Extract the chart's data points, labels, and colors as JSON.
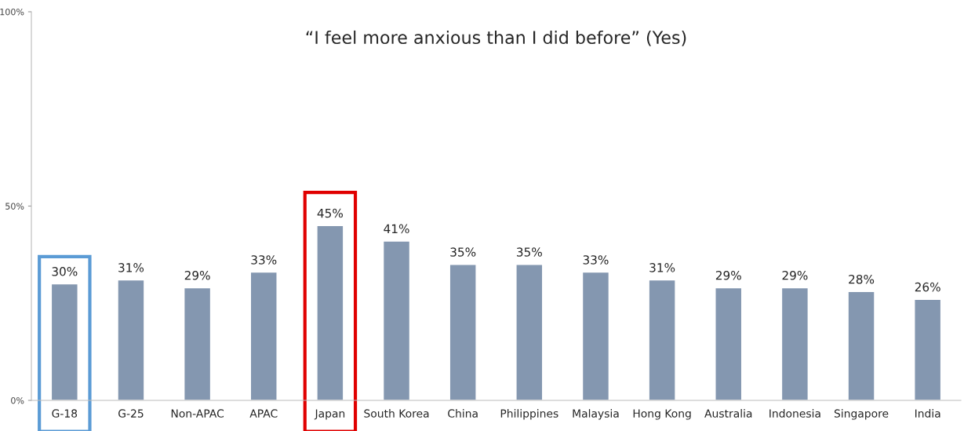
{
  "chart_data": {
    "type": "bar",
    "title": "“I feel more anxious than I did before” (Yes)",
    "categories": [
      "G-18",
      "G-25",
      "Non-APAC",
      "APAC",
      "Japan",
      "South Korea",
      "China",
      "Philippines",
      "Malaysia",
      "Hong Kong",
      "Australia",
      "Indonesia",
      "Singapore",
      "India"
    ],
    "values": [
      30,
      31,
      29,
      33,
      45,
      41,
      35,
      35,
      33,
      31,
      29,
      29,
      28,
      26
    ],
    "color": "#8497b0",
    "ylim": [
      0,
      100
    ],
    "yticks": [
      {
        "value": 0,
        "label": "0%"
      },
      {
        "value": 50,
        "label": "50%"
      },
      {
        "value": 100,
        "label": "100%"
      }
    ],
    "grid": false,
    "value_labels": [
      "30%",
      "31%",
      "29%",
      "33%",
      "45%",
      "41%",
      "35%",
      "35%",
      "33%",
      "31%",
      "29%",
      "29%",
      "28%",
      "26%"
    ]
  }
}
